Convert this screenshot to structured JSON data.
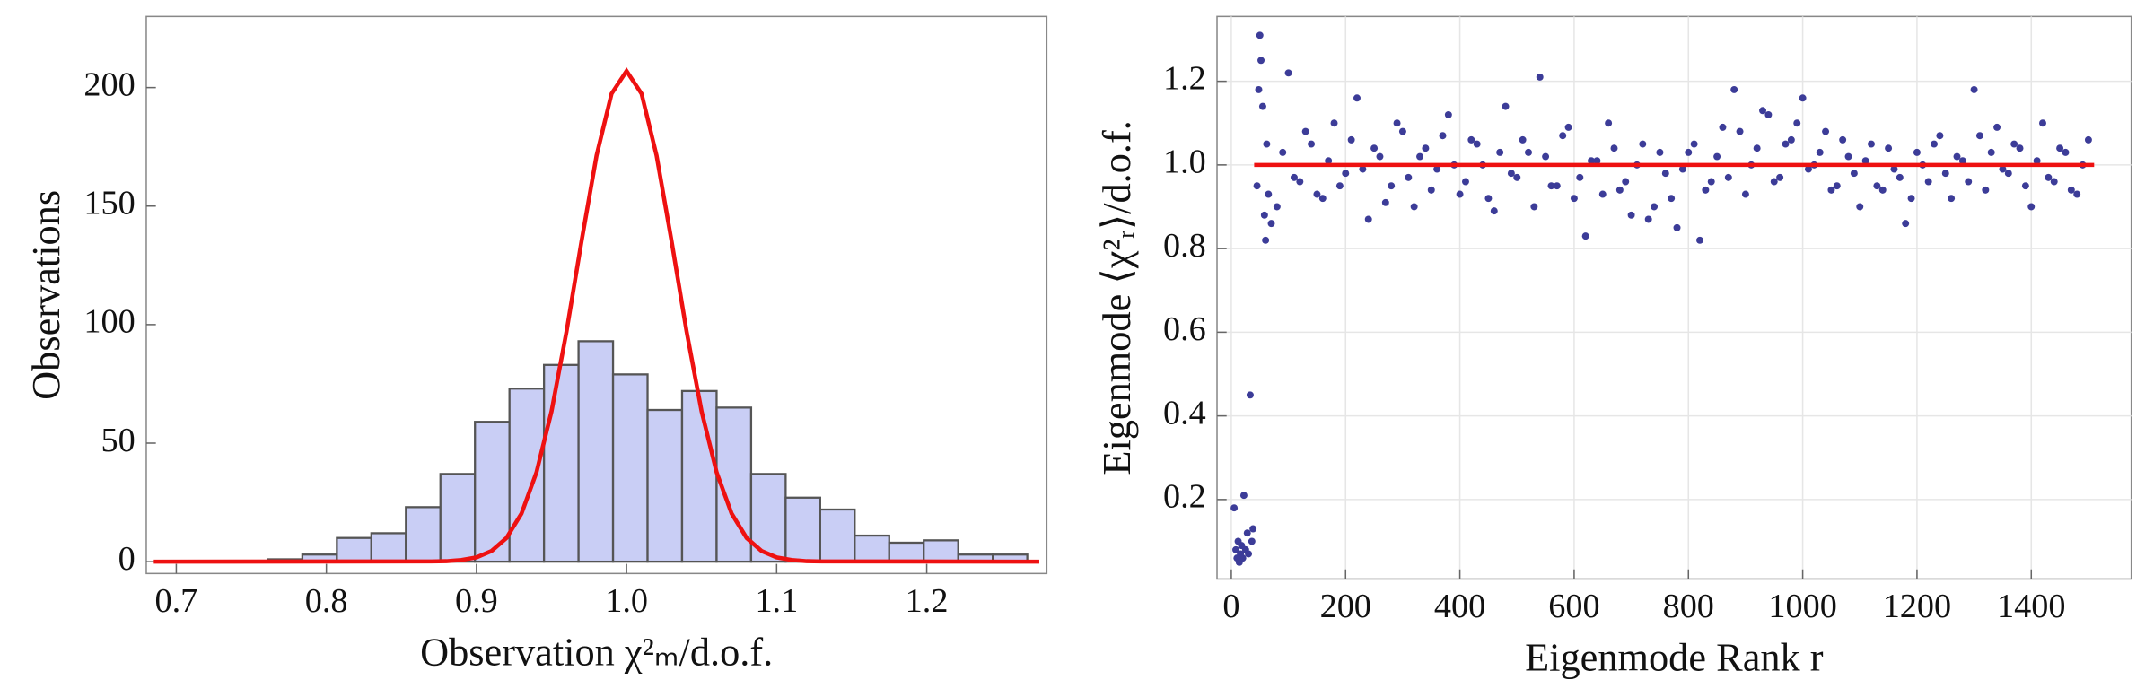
{
  "chart_data": [
    {
      "type": "histogram",
      "xlabel": "Observation χ²ₘ/d.o.f.",
      "ylabel": "Observations",
      "bins": [
        0.761,
        0.784,
        0.807,
        0.83,
        0.853,
        0.876,
        0.899,
        0.922,
        0.945,
        0.968,
        0.991,
        1.014,
        1.037,
        1.06,
        1.083,
        1.106,
        1.129,
        1.152,
        1.175,
        1.198,
        1.221,
        1.244,
        1.267
      ],
      "values": [
        1,
        3,
        10,
        12,
        23,
        37,
        59,
        73,
        83,
        93,
        79,
        64,
        72,
        65,
        37,
        27,
        22,
        11,
        8,
        9,
        3,
        3
      ],
      "color": "#c9cef5",
      "edge_color": "#555555",
      "line": {
        "color": "#ee1111",
        "x": [
          0.685,
          0.87,
          0.88,
          0.89,
          0.9,
          0.91,
          0.92,
          0.93,
          0.94,
          0.95,
          0.96,
          0.97,
          0.98,
          0.99,
          1.0,
          1.01,
          1.02,
          1.03,
          1.04,
          1.05,
          1.06,
          1.07,
          1.08,
          1.09,
          1.1,
          1.11,
          1.12,
          1.13,
          1.275
        ],
        "values": [
          0,
          0.1,
          0.2,
          0.7,
          1.8,
          4.5,
          10.0,
          20.3,
          37.7,
          63.4,
          97.1,
          135.2,
          171.3,
          197.4,
          207,
          197.4,
          171.3,
          135.2,
          97.1,
          63.4,
          37.7,
          20.3,
          10.0,
          4.5,
          1.8,
          0.7,
          0.2,
          0.1,
          0
        ]
      },
      "xlim": [
        0.68,
        1.28
      ],
      "ylim": [
        -5,
        230
      ],
      "xticks": [
        0.7,
        0.8,
        0.9,
        {
          "value": 1,
          "label": "1.0"
        },
        1.1,
        1.2
      ],
      "yticks": [
        0,
        50,
        100,
        150,
        200
      ],
      "grid": false
    },
    {
      "type": "scatter",
      "xlabel": "Eigenmode Rank r",
      "ylabel": "Eigenmode ⟨χ²ᵣ⟩/d.o.f.",
      "color": "#3c3c98",
      "x": [
        5,
        8,
        10,
        12,
        14,
        16,
        18,
        20,
        22,
        25,
        28,
        30,
        33,
        36,
        38,
        45,
        48,
        50,
        52,
        55,
        58,
        60,
        62,
        65,
        70,
        80,
        100,
        120,
        140,
        160,
        180,
        200,
        220,
        240,
        260,
        280,
        300,
        320,
        340,
        360,
        380,
        400,
        420,
        440,
        460,
        480,
        500,
        520,
        540,
        560,
        580,
        600,
        620,
        640,
        660,
        680,
        700,
        720,
        740,
        760,
        780,
        800,
        820,
        840,
        860,
        880,
        900,
        920,
        940,
        960,
        980,
        1000,
        1020,
        1040,
        1060,
        1080,
        1100,
        1120,
        1140,
        1160,
        1180,
        1200,
        1220,
        1240,
        1260,
        1280,
        1300,
        1320,
        1340,
        1360,
        1380,
        1400,
        1420,
        1440,
        1460,
        1480,
        1500,
        90,
        110,
        130,
        150,
        170,
        190,
        210,
        230,
        250,
        270,
        290,
        310,
        330,
        350,
        370,
        390,
        410,
        430,
        450,
        470,
        490,
        510,
        530,
        550,
        570,
        590,
        610,
        630,
        650,
        670,
        690,
        710,
        730,
        750,
        770,
        790,
        810,
        830,
        850,
        870,
        890,
        910,
        930,
        950,
        970,
        990,
        1010,
        1030,
        1050,
        1070,
        1090,
        1110,
        1130,
        1150,
        1170,
        1190,
        1210,
        1230,
        1250,
        1270,
        1290,
        1310,
        1330,
        1350,
        1370,
        1390,
        1410,
        1430,
        1450,
        1470,
        1490
      ],
      "values": [
        0.18,
        0.08,
        0.06,
        0.1,
        0.05,
        0.07,
        0.09,
        0.06,
        0.21,
        0.08,
        0.12,
        0.07,
        0.45,
        0.1,
        0.13,
        0.95,
        1.18,
        1.31,
        1.25,
        1.14,
        0.88,
        0.82,
        1.05,
        0.93,
        0.86,
        0.9,
        1.22,
        0.96,
        1.05,
        0.92,
        1.1,
        0.98,
        1.16,
        0.87,
        1.02,
        0.95,
        1.08,
        0.9,
        1.04,
        0.99,
        1.12,
        0.93,
        1.06,
        1.0,
        0.89,
        1.14,
        0.97,
        1.03,
        1.21,
        0.95,
        1.07,
        0.92,
        0.83,
        1.01,
        1.1,
        0.94,
        0.88,
        1.05,
        0.9,
        0.98,
        0.85,
        1.03,
        0.82,
        0.96,
        1.09,
        1.18,
        0.93,
        1.04,
        1.12,
        0.97,
        1.06,
        1.16,
        1.0,
        1.08,
        0.95,
        1.02,
        0.9,
        1.05,
        0.94,
        0.99,
        0.86,
        1.03,
        0.96,
        1.07,
        0.92,
        1.01,
        1.18,
        0.94,
        1.09,
        0.98,
        1.04,
        0.9,
        1.1,
        0.96,
        1.03,
        0.93,
        1.06,
        1.03,
        0.97,
        1.08,
        0.93,
        1.01,
        0.95,
        1.06,
        0.99,
        1.04,
        0.91,
        1.1,
        0.97,
        1.02,
        0.94,
        1.07,
        1.0,
        0.96,
        1.05,
        0.92,
        1.03,
        0.98,
        1.06,
        0.9,
        1.02,
        0.95,
        1.09,
        0.97,
        1.01,
        0.93,
        1.04,
        0.96,
        1.0,
        0.87,
        1.03,
        0.92,
        0.99,
        1.05,
        0.94,
        1.02,
        0.97,
        1.08,
        1.0,
        1.13,
        0.96,
        1.05,
        1.1,
        0.99,
        1.03,
        0.94,
        1.06,
        0.98,
        1.01,
        0.95,
        1.04,
        0.97,
        0.92,
        1.0,
        1.05,
        0.98,
        1.02,
        0.96,
        1.07,
        1.03,
        0.99,
        1.05,
        0.95,
        1.01,
        0.97,
        1.04,
        0.94,
        1.0
      ],
      "line": {
        "color": "#ee1111",
        "x": [
          40,
          1510
        ],
        "values": [
          1,
          1
        ]
      },
      "xlim": [
        -25,
        1575
      ],
      "ylim": [
        0.01,
        1.355
      ],
      "xticks": [
        0,
        200,
        400,
        600,
        800,
        1000,
        1200,
        1400
      ],
      "yticks": [
        0.2,
        0.4,
        0.6,
        0.8,
        {
          "value": 1,
          "label": "1.0"
        },
        1.2
      ],
      "grid": true
    }
  ]
}
